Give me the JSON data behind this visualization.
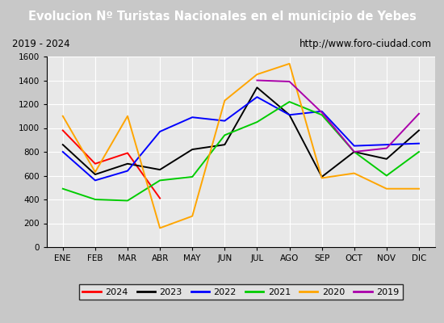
{
  "title": "Evolucion Nº Turistas Nacionales en el municipio de Yebes",
  "subtitle_left": "2019 - 2024",
  "subtitle_right": "http://www.foro-ciudad.com",
  "months": [
    "ENE",
    "FEB",
    "MAR",
    "ABR",
    "MAY",
    "JUN",
    "JUL",
    "AGO",
    "SEP",
    "OCT",
    "NOV",
    "DIC"
  ],
  "series": {
    "2024": [
      980,
      700,
      790,
      410,
      null,
      null,
      null,
      null,
      null,
      null,
      null,
      null
    ],
    "2023": [
      860,
      610,
      700,
      650,
      820,
      860,
      1340,
      1110,
      590,
      800,
      740,
      980
    ],
    "2022": [
      800,
      560,
      640,
      970,
      1090,
      1060,
      1260,
      1110,
      1140,
      850,
      860,
      870
    ],
    "2021": [
      490,
      400,
      390,
      560,
      590,
      940,
      1050,
      1220,
      1110,
      800,
      600,
      800
    ],
    "2020": [
      1100,
      630,
      1100,
      160,
      260,
      1230,
      1450,
      1540,
      580,
      620,
      490,
      490
    ],
    "2019": [
      null,
      null,
      null,
      null,
      null,
      null,
      1400,
      1390,
      1130,
      800,
      830,
      1120
    ]
  },
  "colors": {
    "2024": "#ff0000",
    "2023": "#000000",
    "2022": "#0000ff",
    "2021": "#00cc00",
    "2020": "#ffa500",
    "2019": "#aa00aa"
  },
  "ylim": [
    0,
    1600
  ],
  "yticks": [
    0,
    200,
    400,
    600,
    800,
    1000,
    1200,
    1400,
    1600
  ],
  "title_bg_color": "#4488cc",
  "title_text_color": "#ffffff",
  "subtitle_bg_color": "#e0e0e0",
  "plot_bg_color": "#e8e8e8",
  "outer_bg_color": "#c8c8c8",
  "grid_color": "#ffffff"
}
